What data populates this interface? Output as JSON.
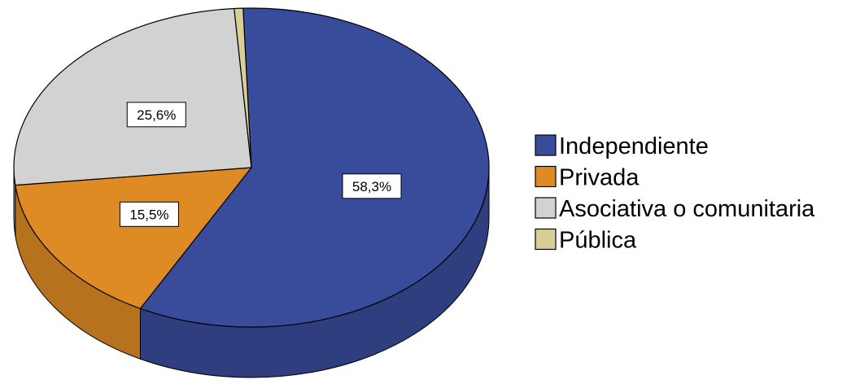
{
  "chart_data": {
    "type": "pie",
    "title": "",
    "style": "3d",
    "legend_position": "right",
    "slices": [
      {
        "name": "Independiente",
        "value": 58.3,
        "label": "58,3%",
        "color": "#394c9b",
        "show_label": true
      },
      {
        "name": "Privada",
        "value": 15.5,
        "label": "15,5%",
        "color": "#df8b25",
        "show_label": true
      },
      {
        "name": "Asociativa o comunitaria",
        "value": 25.6,
        "label": "25,6%",
        "color": "#d2d2d2",
        "show_label": true
      },
      {
        "name": "Pública",
        "value": 0.6,
        "label": "",
        "color": "#d8cf96",
        "show_label": false
      }
    ],
    "legend": [
      "Independiente",
      "Privada",
      "Asociativa o comunitaria",
      "Pública"
    ]
  }
}
